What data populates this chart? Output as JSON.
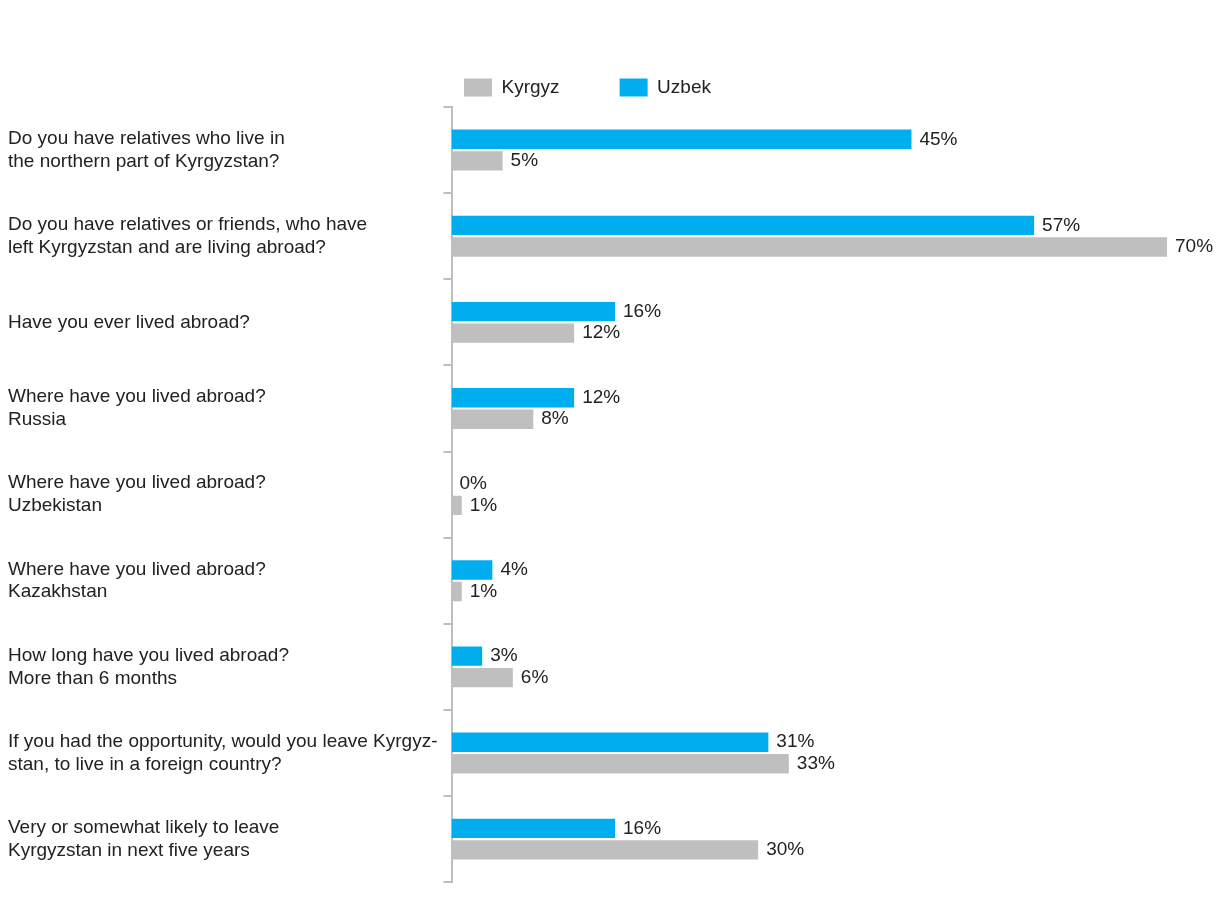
{
  "chart_data": {
    "type": "bar",
    "orientation": "horizontal",
    "categories": [
      "Do you have relatives who live in\nthe northern part of Kyrgyzstan?",
      "Do you have relatives or friends, who have\nleft Kyrgyzstan and are living abroad?",
      "Have you ever lived abroad?",
      "Where have you lived abroad?\nRussia",
      "Where have you lived abroad?\nUzbekistan",
      "Where have you lived abroad?\nKazakhstan",
      "How long have you lived abroad?\nMore than 6 months",
      "If you had the opportunity, would you leave Kyrgyz-\nstan, to live in a foreign country?",
      "Very or somewhat likely to leave\nKyrgyzstan in next five years"
    ],
    "series": [
      {
        "name": "Uzbek",
        "color": "#00aeef",
        "values": [
          45,
          57,
          16,
          12,
          0,
          4,
          3,
          31,
          16
        ],
        "value_labels": [
          "45%",
          "57%",
          "16%",
          "12%",
          "0%",
          "4%",
          "3%",
          "31%",
          "16%"
        ]
      },
      {
        "name": "Kyrgyz",
        "color": "#bfbfbf",
        "values": [
          5,
          70,
          12,
          8,
          1,
          1,
          6,
          33,
          30
        ],
        "value_labels": [
          "5%",
          "70%",
          "12%",
          "8%",
          "1%",
          "1%",
          "6%",
          "33%",
          "30%"
        ]
      }
    ],
    "legend": "top",
    "grid": false
  }
}
